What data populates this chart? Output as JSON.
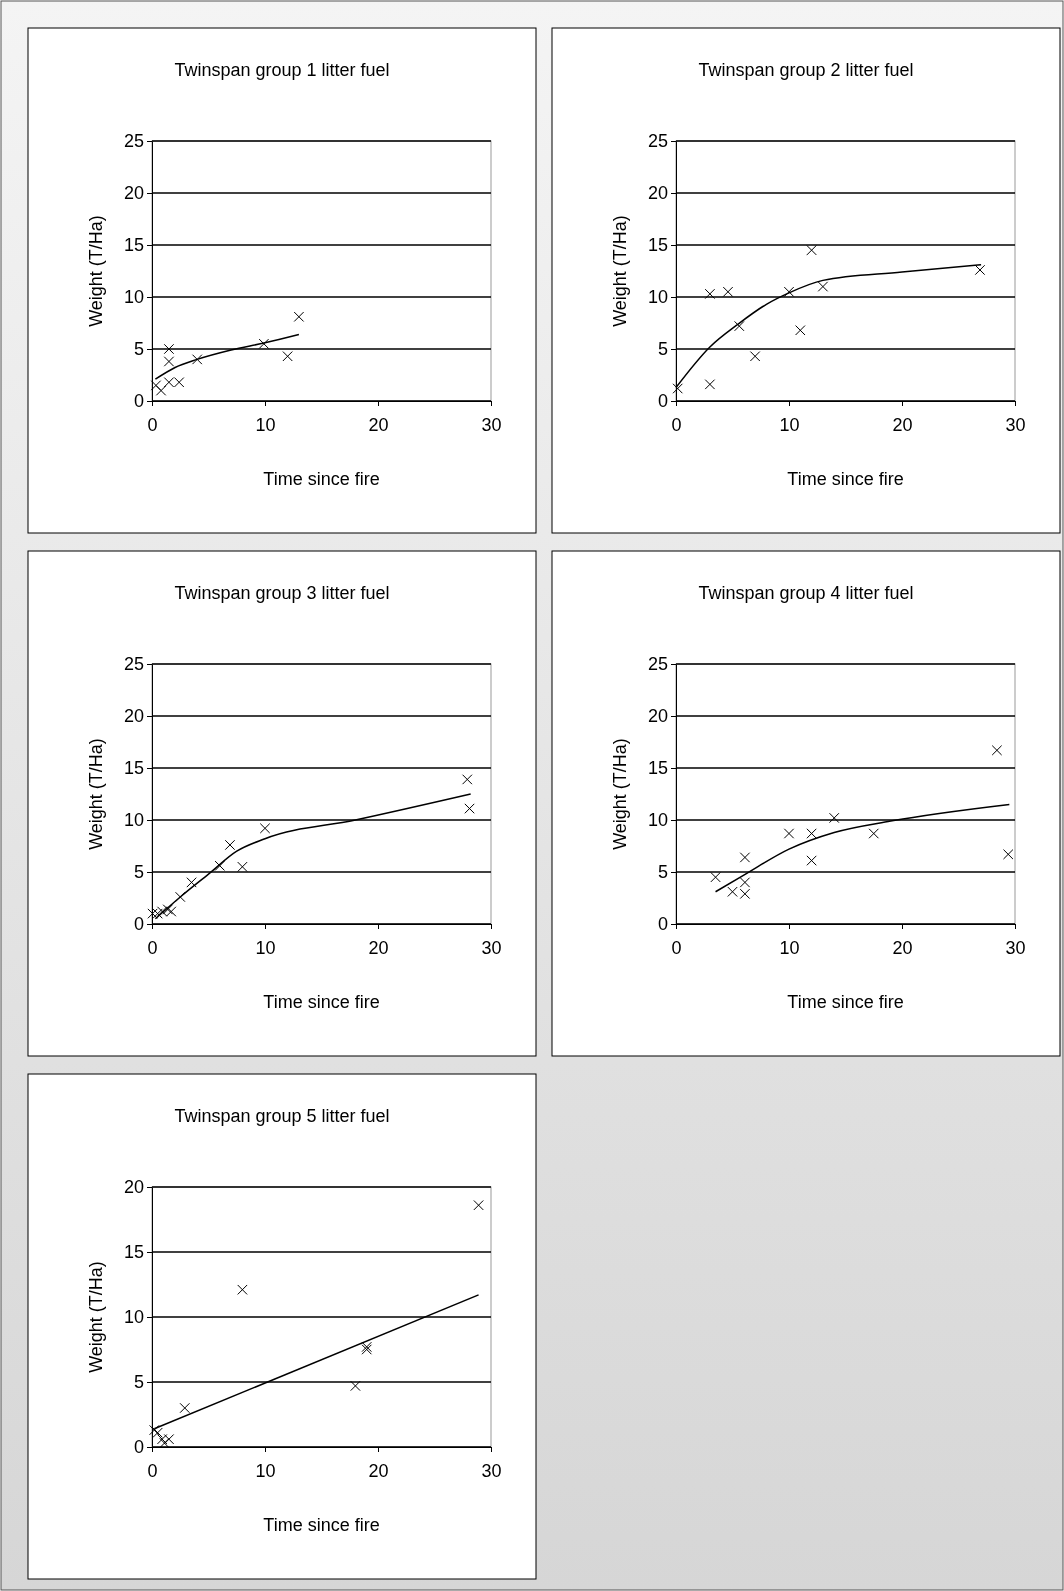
{
  "chart_data": [
    {
      "type": "scatter",
      "title": "Twinspan group 1 litter fuel",
      "xlabel": "Time since fire",
      "ylabel": "Weight (T/Ha)",
      "xlim": [
        0,
        30
      ],
      "xticks": [
        0,
        10,
        20,
        30
      ],
      "ylim": [
        0,
        25
      ],
      "yticks": [
        0,
        5,
        10,
        15,
        20,
        25
      ],
      "grid": "y",
      "series": [
        {
          "marker": "cross",
          "color": "#000000",
          "x": [
            0.35,
            0.8,
            1.5,
            2.4,
            1.5,
            1.5,
            4.0,
            9.9,
            12,
            13
          ],
          "values": [
            1.5,
            1.0,
            1.8,
            1.8,
            5.0,
            3.8,
            4.0,
            5.5,
            4.3,
            8.1
          ]
        },
        {
          "type": "line",
          "marker": "none",
          "line_style": "solid",
          "color": "#000000",
          "x": [
            0.3,
            2,
            4,
            7,
            10,
            13
          ],
          "values": [
            2.1,
            3.2,
            4.0,
            4.9,
            5.6,
            6.4
          ]
        }
      ]
    },
    {
      "type": "scatter",
      "title": "Twinspan group 2 litter fuel",
      "xlabel": "Time since fire",
      "ylabel": "Weight (T/Ha)",
      "xlim": [
        0,
        30
      ],
      "xticks": [
        0,
        10,
        20,
        30
      ],
      "ylim": [
        0,
        25
      ],
      "yticks": [
        0,
        5,
        10,
        15,
        20,
        25
      ],
      "grid": "y",
      "series": [
        {
          "marker": "cross",
          "color": "#000000",
          "x": [
            0.15,
            3,
            3,
            4.6,
            5.6,
            7,
            10,
            11,
            12,
            13,
            26.9
          ],
          "values": [
            1.2,
            1.6,
            10.3,
            10.5,
            7.2,
            4.3,
            10.5,
            6.8,
            14.5,
            11.0,
            12.6
          ]
        },
        {
          "type": "line",
          "marker": "none",
          "line_style": "solid",
          "color": "#000000",
          "x": [
            0,
            3,
            5.5,
            8,
            10,
            13,
            20,
            27
          ],
          "values": [
            1.3,
            5.2,
            7.4,
            9.3,
            10.4,
            11.6,
            12.4,
            13.1
          ]
        }
      ]
    },
    {
      "type": "scatter",
      "title": "Twinspan group 3 litter fuel",
      "xlabel": "Time since fire",
      "ylabel": "Weight (T/Ha)",
      "xlim": [
        0,
        30
      ],
      "xticks": [
        0,
        10,
        20,
        30
      ],
      "ylim": [
        0,
        25
      ],
      "yticks": [
        0,
        5,
        10,
        15,
        20,
        25
      ],
      "grid": "y",
      "series": [
        {
          "marker": "cross",
          "color": "#000000",
          "x": [
            0.05,
            0.5,
            0.9,
            1.4,
            1.7,
            2.5,
            3.5,
            6,
            6.9,
            8,
            10,
            27.9,
            28.1
          ],
          "values": [
            1.0,
            1.0,
            1.2,
            1.4,
            1.2,
            2.6,
            4.0,
            5.6,
            7.6,
            5.5,
            9.2,
            13.9,
            11.1
          ]
        },
        {
          "type": "line",
          "marker": "none",
          "line_style": "solid",
          "color": "#000000",
          "x": [
            0.3,
            2.5,
            5,
            7.5,
            10,
            18,
            28.2
          ],
          "values": [
            0.5,
            2.6,
            4.8,
            7.0,
            8.2,
            10.0,
            12.5
          ]
        }
      ]
    },
    {
      "type": "scatter",
      "title": "Twinspan group 4 litter fuel",
      "xlabel": "Time since fire",
      "ylabel": "Weight (T/Ha)",
      "xlim": [
        0,
        30
      ],
      "xticks": [
        0,
        10,
        20,
        30
      ],
      "ylim": [
        0,
        25
      ],
      "yticks": [
        0,
        5,
        10,
        15,
        20,
        25
      ],
      "grid": "y",
      "series": [
        {
          "marker": "cross",
          "color": "#000000",
          "x": [
            3.5,
            5,
            6.1,
            6.1,
            6.1,
            10,
            12,
            12,
            14,
            17.5,
            28.4,
            29.4
          ],
          "values": [
            4.5,
            3.1,
            2.9,
            4.0,
            6.4,
            8.7,
            8.7,
            6.1,
            10.2,
            8.7,
            16.7,
            6.7
          ]
        },
        {
          "type": "line",
          "marker": "none",
          "line_style": "solid",
          "color": "#000000",
          "x": [
            3.5,
            6,
            10,
            14,
            19,
            29.5
          ],
          "values": [
            3.1,
            4.7,
            7.2,
            8.8,
            9.9,
            11.5
          ]
        }
      ]
    },
    {
      "type": "scatter",
      "title": "Twinspan group 5 litter fuel",
      "xlabel": "Time since fire",
      "ylabel": "Weight (T/Ha)",
      "xlim": [
        0,
        30
      ],
      "xticks": [
        0,
        10,
        20,
        30
      ],
      "ylim": [
        0,
        20
      ],
      "yticks": [
        0,
        5,
        10,
        15,
        20
      ],
      "grid": "y",
      "series": [
        {
          "marker": "cross",
          "color": "#000000",
          "x": [
            0.2,
            0.5,
            0.9,
            1.5,
            1.1,
            2.9,
            8,
            18,
            19,
            19,
            28.9
          ],
          "values": [
            1.3,
            1.1,
            0.6,
            0.6,
            0.3,
            3.0,
            12.1,
            4.7,
            7.7,
            7.5,
            18.6
          ]
        },
        {
          "type": "line",
          "marker": "none",
          "line_style": "solid",
          "color": "#000000",
          "x": [
            0.2,
            28.9
          ],
          "values": [
            1.4,
            11.7
          ]
        }
      ]
    }
  ]
}
